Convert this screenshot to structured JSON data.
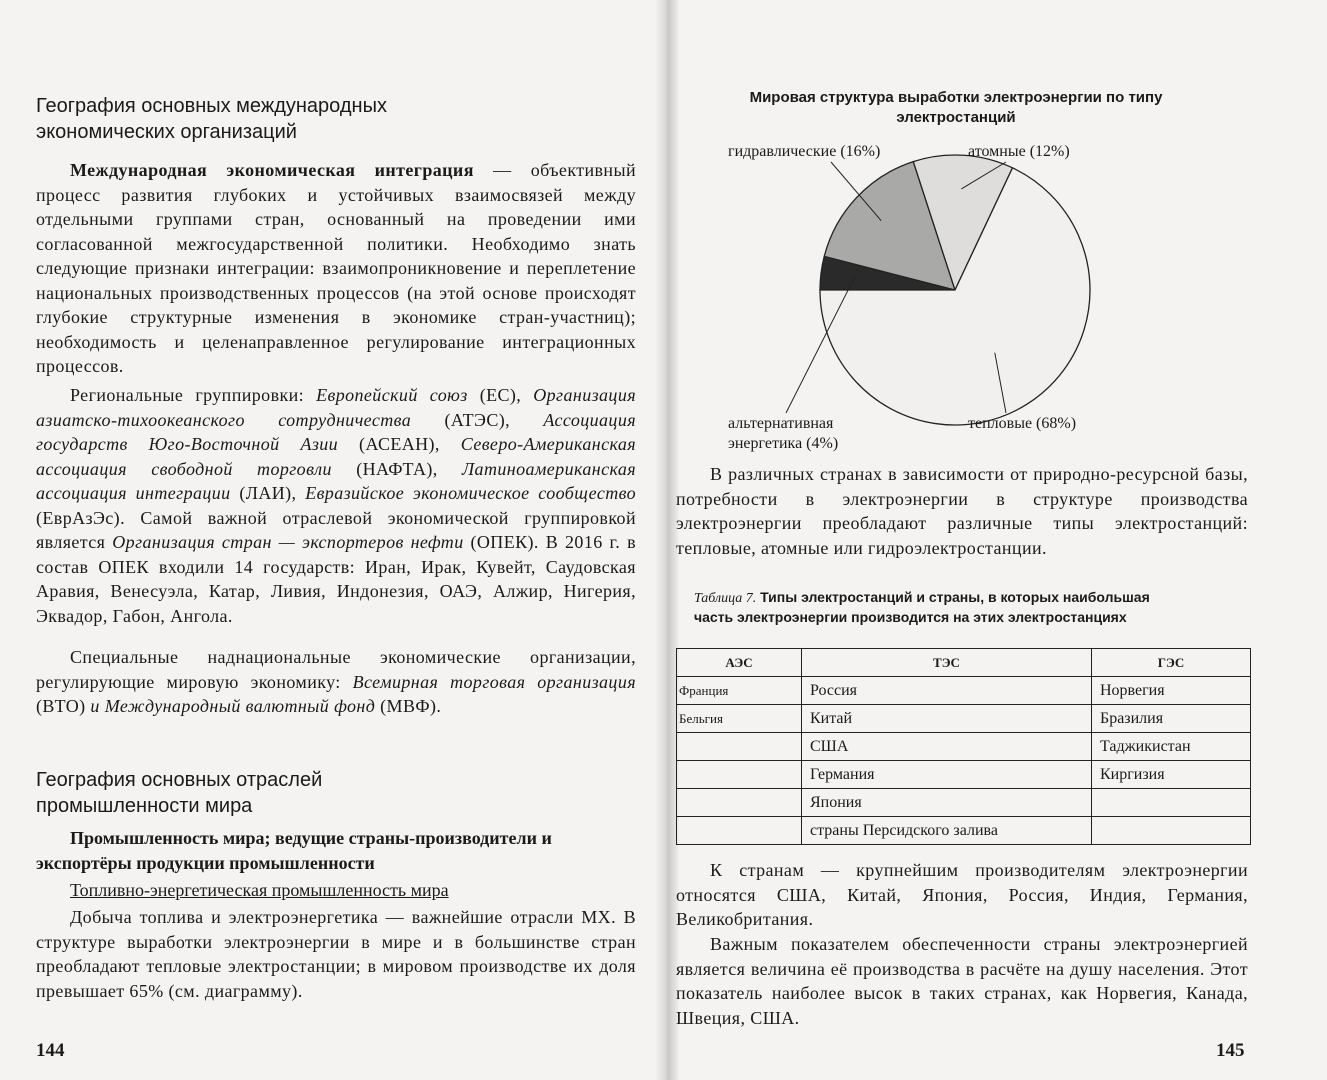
{
  "left_page": {
    "heading1": [
      "География основных международных",
      "экономических организаций"
    ],
    "p1_term": "Международная экономическая интеграция",
    "p1_text": " — объективный процесс развития глубоких и устойчивых взаимосвязей между отдельными группами стран, основанный на проведении ими согласованной межгосударственной политики. Необходимо знать следующие признаки интеграции: взаимопроникновение и переплетение национальных производственных процессов (на этой основе происходят глубокие структурные изменения в экономике стран-участниц); необходимость и целенаправленное регулирование интеграционных процессов.",
    "p2": [
      {
        "t": "Региональные группировки: ",
        "i": false
      },
      {
        "t": "Европейский союз",
        "i": true
      },
      {
        "t": " (ЕС), ",
        "i": false
      },
      {
        "t": "Организация азиатско-тихоокеанского сотрудничества",
        "i": true
      },
      {
        "t": " (АТЭС), ",
        "i": false
      },
      {
        "t": "Ассоциация государств Юго-Восточной Азии",
        "i": true
      },
      {
        "t": " (АСЕАН), ",
        "i": false
      },
      {
        "t": "Северо-Американская ассоциация свободной торговли",
        "i": true
      },
      {
        "t": " (НАФТА), ",
        "i": false
      },
      {
        "t": "Латиноамериканская ассоциация интеграции",
        "i": true
      },
      {
        "t": " (ЛАИ), ",
        "i": false
      },
      {
        "t": "Евразийское экономическое сообщество",
        "i": true
      },
      {
        "t": " (ЕврАзЭс). Самой важной отраслевой экономической группировкой является ",
        "i": false
      },
      {
        "t": "Организация стран — экспортеров нефти",
        "i": true
      },
      {
        "t": " (ОПЕК). В 2016 г. в состав ОПЕК входили 14 государств: Иран, Ирак, Кувейт, Саудовская Аравия, Венесуэла, Катар, Ливия, Индонезия, ОАЭ, Алжир, Нигерия, Эквадор, Габон, Ангола.",
        "i": false
      }
    ],
    "p3": [
      {
        "t": "Специальные наднациональные экономические организации, регулирующие мировую экономику: ",
        "i": false
      },
      {
        "t": "Всемирная торговая организация",
        "i": true
      },
      {
        "t": " (ВТО) ",
        "i": false
      },
      {
        "t": "и Международный валютный фонд",
        "i": true
      },
      {
        "t": " (МВФ).",
        "i": false
      }
    ],
    "heading2": [
      "География основных отраслей",
      "промышленности мира"
    ],
    "subheading": "Промышленность мира; ведущие страны-производители и экспортёры продукции промышленности",
    "underlined": "Топливно-энергетическая промышленность мира",
    "p4": "Добыча топлива и электроэнергетика — важнейшие отрасли МХ. В структуре выработки электроэнергии в мире и в большинстве стран преобладают тепловые электростанции; в мировом производстве их доля превышает 65% (см. диаграмму).",
    "page_number": "144"
  },
  "right_page": {
    "chart_data": {
      "type": "pie",
      "title": "Мировая структура выработки электроэнергии по типу электростанций",
      "slices": [
        {
          "label": "альтернативная энергетика (4%)",
          "value": 4,
          "color": "#2a2a2a"
        },
        {
          "label": "гидравлические (16%)",
          "value": 16,
          "color": "#a9a9a7"
        },
        {
          "label": "атомные (12%)",
          "value": 12,
          "color": "#dedddb"
        },
        {
          "label": "тепловые (68%)",
          "value": 68,
          "color": "#f1f0ee"
        }
      ]
    },
    "p1": "В различных странах в зависимости от природно-ресурсной базы, потребности в электроэнергии в структуре производства электроэнергии преобладают различные типы электростанций: тепловые, атомные или гидроэлектростанции.",
    "table_caption_label": "Таблица 7.",
    "table_caption": " Типы электростанций и страны, в которых наибольшая часть электроэнергии производится на этих электростанциях",
    "table": {
      "headers": [
        "АЭС",
        "ТЭС",
        "ГЭС"
      ],
      "rows": [
        [
          "Франция",
          "Россия",
          "Норвегия"
        ],
        [
          "Бельгия",
          "Китай",
          "Бразилия"
        ],
        [
          "",
          "США",
          "Таджикистан"
        ],
        [
          "",
          "Германия",
          "Киргизия"
        ],
        [
          "",
          "Япония",
          ""
        ],
        [
          "",
          "страны Персидского залива",
          ""
        ]
      ]
    },
    "p2": "К странам — крупнейшим производителям электроэнергии относятся США, Китай, Япония, Россия, Индия, Германия, Великобритания.",
    "p3": "Важным показателем обеспеченности страны электроэнергией является величина её производства в расчёте на душу населения. Этот показатель наиболее высок в таких странах, как Норвегия, Канада, Швеция, США.",
    "page_number": "145"
  }
}
